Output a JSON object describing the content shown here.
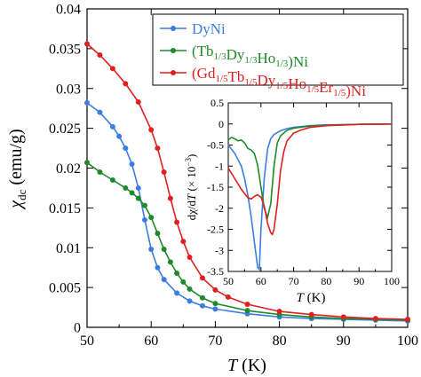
{
  "chart_data": [
    {
      "type": "line",
      "xlabel_symbol": "T",
      "xlabel_unit": "(K)",
      "ylabel_symbol": "χ",
      "ylabel_sub": "dc",
      "ylabel_unit": "(emu/g)",
      "xlim": [
        50,
        100
      ],
      "ylim": [
        0,
        0.04
      ],
      "xticks": [
        "50",
        "60",
        "70",
        "80",
        "90",
        "100"
      ],
      "yticks": [
        "0",
        "0.005",
        "0.01",
        "0.015",
        "0.02",
        "0.025",
        "0.03",
        "0.035",
        "0.04"
      ],
      "legend_position": "top-right",
      "series": [
        {
          "legend_parts": [
            [
              "DyNi",
              ""
            ]
          ],
          "color": "#3b7de0",
          "x": [
            50,
            52,
            54,
            55,
            56,
            57,
            58,
            59,
            60,
            61,
            62,
            64,
            66,
            68,
            70,
            75,
            80,
            85,
            90,
            95,
            100
          ],
          "y": [
            0.0282,
            0.027,
            0.0252,
            0.024,
            0.0225,
            0.0205,
            0.0175,
            0.0135,
            0.0098,
            0.0075,
            0.006,
            0.0043,
            0.0033,
            0.0027,
            0.0023,
            0.0017,
            0.0013,
            0.0011,
            0.001,
            0.0009,
            0.0008
          ]
        },
        {
          "legend_parts": [
            [
              "(Tb",
              ""
            ],
            [
              "1/3",
              "sub"
            ],
            [
              "Dy",
              ""
            ],
            [
              "1/3",
              "sub"
            ],
            [
              "Ho",
              ""
            ],
            [
              "1/3",
              "sub"
            ],
            [
              ")Ni",
              ""
            ]
          ],
          "color": "#1f8a2a",
          "x": [
            50,
            52,
            54,
            56,
            57,
            58,
            59,
            60,
            61,
            62,
            63,
            64,
            65,
            66,
            68,
            70,
            75,
            80,
            85,
            90,
            95,
            100
          ],
          "y": [
            0.0207,
            0.0195,
            0.0185,
            0.0175,
            0.0169,
            0.0162,
            0.0153,
            0.0138,
            0.0118,
            0.0098,
            0.0082,
            0.0068,
            0.0057,
            0.0048,
            0.0037,
            0.003,
            0.0021,
            0.0016,
            0.0013,
            0.0011,
            0.001,
            0.0009
          ]
        },
        {
          "legend_parts": [
            [
              "(Gd",
              ""
            ],
            [
              "1/5",
              "sub"
            ],
            [
              "Tb",
              ""
            ],
            [
              "1/5",
              "sub"
            ],
            [
              "Dy",
              ""
            ],
            [
              "1/5",
              "sub"
            ],
            [
              "Ho",
              ""
            ],
            [
              "1/5",
              "sub"
            ],
            [
              "Er",
              ""
            ],
            [
              "1/5",
              "sub"
            ],
            [
              ")Ni",
              ""
            ]
          ],
          "color": "#e02020",
          "x": [
            50,
            52,
            54,
            56,
            58,
            60,
            61,
            62,
            63,
            64,
            65,
            66,
            68,
            70,
            72,
            75,
            80,
            85,
            90,
            95,
            100
          ],
          "y": [
            0.0356,
            0.0342,
            0.0325,
            0.0306,
            0.0283,
            0.0248,
            0.0225,
            0.0195,
            0.0162,
            0.0132,
            0.0108,
            0.0088,
            0.0062,
            0.0047,
            0.0038,
            0.0029,
            0.002,
            0.0016,
            0.0013,
            0.0011,
            0.001
          ]
        }
      ]
    },
    {
      "type": "line",
      "xlabel_symbol": "T",
      "xlabel_unit": "(K)",
      "ylabel_parts": [
        "dχ/d",
        "T",
        " (× 10",
        "−3",
        ")"
      ],
      "xlim": [
        50,
        100
      ],
      "ylim": [
        -3.5,
        0.5
      ],
      "xticks": [
        "50",
        "60",
        "70",
        "80",
        "90",
        "100"
      ],
      "yticks": [
        "0.5",
        "0",
        "-0.5",
        "-1",
        "-1.5",
        "-2",
        "-2.5",
        "-3",
        "-3.5"
      ],
      "series": [
        {
          "color": "#3b7de0",
          "x": [
            50,
            52,
            54,
            55,
            56,
            57,
            58,
            59,
            59.5,
            60,
            61,
            62,
            63,
            64,
            66,
            68,
            70,
            75,
            80,
            90,
            100
          ],
          "y": [
            -0.5,
            -0.7,
            -1.0,
            -1.3,
            -1.7,
            -2.2,
            -2.8,
            -3.4,
            -3.45,
            -2.5,
            -1.3,
            -0.6,
            -0.35,
            -0.25,
            -0.16,
            -0.11,
            -0.08,
            -0.04,
            -0.02,
            -0.01,
            0.0
          ]
        },
        {
          "color": "#1f8a2a",
          "x": [
            50,
            51,
            52,
            53,
            54,
            55,
            56,
            57,
            58,
            59,
            60,
            61,
            62,
            63,
            64,
            65,
            66,
            68,
            70,
            75,
            80,
            90,
            100
          ],
          "y": [
            -0.38,
            -0.32,
            -0.35,
            -0.4,
            -0.38,
            -0.45,
            -0.58,
            -0.62,
            -0.7,
            -0.98,
            -1.5,
            -2.0,
            -2.22,
            -1.9,
            -1.0,
            -0.45,
            -0.28,
            -0.15,
            -0.1,
            -0.05,
            -0.03,
            -0.01,
            0.0
          ]
        },
        {
          "color": "#e02020",
          "x": [
            50,
            52,
            54,
            56,
            57,
            58,
            59,
            60,
            61,
            62,
            63,
            63.5,
            64,
            65,
            66,
            67,
            68,
            70,
            72,
            75,
            80,
            90,
            100
          ],
          "y": [
            -1.05,
            -1.3,
            -1.55,
            -1.75,
            -1.78,
            -1.72,
            -1.68,
            -1.74,
            -1.95,
            -2.35,
            -2.58,
            -2.62,
            -2.5,
            -1.9,
            -1.1,
            -0.65,
            -0.4,
            -0.22,
            -0.15,
            -0.08,
            -0.04,
            -0.01,
            0.0
          ]
        }
      ]
    }
  ]
}
